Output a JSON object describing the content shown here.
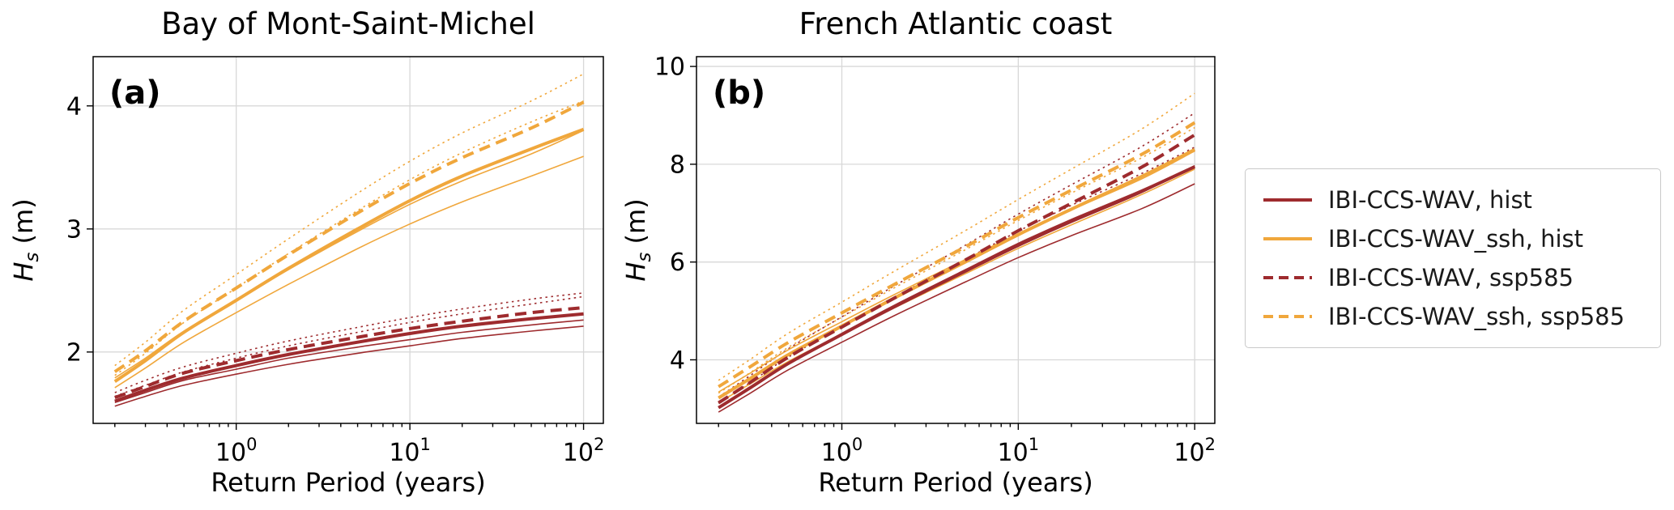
{
  "figure": {
    "background": "#ffffff",
    "grid_color": "#d8d8d8",
    "axis_color": "#000000",
    "text_color": "#000000",
    "colors": {
      "dark_red": "#9e2b2e",
      "orange": "#f0a73c"
    }
  },
  "legend": {
    "entries": [
      {
        "label": "IBI-CCS-WAV, hist",
        "color": "#9e2b2e",
        "style": "solid"
      },
      {
        "label": "IBI-CCS-WAV_ssh, hist",
        "color": "#f0a73c",
        "style": "solid"
      },
      {
        "label": "IBI-CCS-WAV, ssp585",
        "color": "#9e2b2e",
        "style": "dashed"
      },
      {
        "label": "IBI-CCS-WAV_ssh, ssp585",
        "color": "#f0a73c",
        "style": "dashed"
      }
    ]
  },
  "chart_data": [
    {
      "type": "line",
      "panel_label": "(a)",
      "title": "Bay of Mont-Saint-Michel",
      "xlabel": "Return Period (years)",
      "ylabel": "Hs (m)",
      "ylabel_parts": {
        "var": "H",
        "sub": "s",
        "unit": " (m)"
      },
      "xscale": "log",
      "xlim": [
        0.15,
        130
      ],
      "ylim": [
        1.42,
        4.4
      ],
      "xticks": [
        1,
        10,
        100
      ],
      "yticks": [
        2,
        3,
        4
      ],
      "x": [
        0.2,
        0.3,
        0.5,
        1,
        2,
        5,
        10,
        20,
        50,
        100
      ],
      "series": [
        {
          "name": "IBI-CCS-WAV, hist",
          "color": "#9e2b2e",
          "style": "solid",
          "values": [
            1.6,
            1.69,
            1.79,
            1.89,
            1.98,
            2.08,
            2.15,
            2.21,
            2.27,
            2.31
          ],
          "ci_lower": [
            1.56,
            1.64,
            1.73,
            1.82,
            1.9,
            1.99,
            2.05,
            2.11,
            2.17,
            2.21
          ],
          "ci_upper": [
            1.64,
            1.73,
            1.84,
            1.95,
            2.05,
            2.16,
            2.24,
            2.31,
            2.39,
            2.45
          ]
        },
        {
          "name": "IBI-CCS-WAV_ssh, hist",
          "color": "#f0a73c",
          "style": "solid",
          "values": [
            1.76,
            1.93,
            2.16,
            2.42,
            2.68,
            3.0,
            3.23,
            3.43,
            3.65,
            3.81
          ],
          "ci_lower": [
            1.71,
            1.87,
            2.08,
            2.32,
            2.55,
            2.84,
            3.04,
            3.22,
            3.43,
            3.59
          ],
          "ci_upper": [
            1.81,
            1.99,
            2.24,
            2.52,
            2.8,
            3.15,
            3.4,
            3.62,
            3.87,
            4.04
          ]
        },
        {
          "name": "IBI-CCS-WAV, ssp585",
          "color": "#9e2b2e",
          "style": "dashed",
          "values": [
            1.63,
            1.72,
            1.83,
            1.93,
            2.02,
            2.12,
            2.19,
            2.25,
            2.32,
            2.36
          ],
          "ci_lower": [
            1.59,
            1.67,
            1.77,
            1.86,
            1.95,
            2.04,
            2.1,
            2.16,
            2.22,
            2.26
          ],
          "ci_upper": [
            1.67,
            1.77,
            1.88,
            1.99,
            2.09,
            2.2,
            2.28,
            2.35,
            2.43,
            2.48
          ]
        },
        {
          "name": "IBI-CCS-WAV_ssh, ssp585",
          "color": "#f0a73c",
          "style": "dashed",
          "values": [
            1.84,
            2.01,
            2.25,
            2.52,
            2.79,
            3.13,
            3.37,
            3.58,
            3.82,
            4.03
          ],
          "ci_lower": [
            1.79,
            1.95,
            2.17,
            2.42,
            2.67,
            2.98,
            3.2,
            3.39,
            3.61,
            3.8
          ],
          "ci_upper": [
            1.89,
            2.08,
            2.34,
            2.63,
            2.92,
            3.29,
            3.55,
            3.78,
            4.04,
            4.26
          ]
        }
      ]
    },
    {
      "type": "line",
      "panel_label": "(b)",
      "title": "French Atlantic coast",
      "xlabel": "Return Period (years)",
      "ylabel": "Hs (m)",
      "ylabel_parts": {
        "var": "H",
        "sub": "s",
        "unit": " (m)"
      },
      "xscale": "log",
      "xlim": [
        0.15,
        130
      ],
      "ylim": [
        2.7,
        10.2
      ],
      "xticks": [
        1,
        10,
        100
      ],
      "yticks": [
        4,
        6,
        8,
        10
      ],
      "x": [
        0.2,
        0.3,
        0.5,
        1,
        2,
        5,
        10,
        20,
        50,
        100
      ],
      "series": [
        {
          "name": "IBI-CCS-WAV, hist",
          "color": "#9e2b2e",
          "style": "solid",
          "values": [
            3.02,
            3.42,
            3.93,
            4.52,
            5.1,
            5.82,
            6.36,
            6.85,
            7.45,
            7.95
          ],
          "ci_lower": [
            2.93,
            3.31,
            3.8,
            4.36,
            4.91,
            5.59,
            6.09,
            6.54,
            7.09,
            7.6
          ],
          "ci_upper": [
            3.11,
            3.53,
            4.06,
            4.68,
            5.29,
            6.05,
            6.63,
            7.16,
            7.81,
            8.35
          ]
        },
        {
          "name": "IBI-CCS-WAV_ssh, hist",
          "color": "#f0a73c",
          "style": "solid",
          "values": [
            3.22,
            3.61,
            4.11,
            4.69,
            5.27,
            6.0,
            6.56,
            7.08,
            7.75,
            8.3
          ],
          "ci_lower": [
            3.12,
            3.5,
            3.97,
            4.52,
            5.07,
            5.76,
            6.28,
            6.76,
            7.38,
            7.9
          ],
          "ci_upper": [
            3.32,
            3.73,
            4.26,
            4.87,
            5.48,
            6.25,
            6.85,
            7.41,
            8.13,
            8.75
          ]
        },
        {
          "name": "IBI-CCS-WAV, ssp585",
          "color": "#9e2b2e",
          "style": "dashed",
          "values": [
            3.12,
            3.53,
            4.06,
            4.67,
            5.27,
            6.04,
            6.64,
            7.2,
            7.94,
            8.6
          ],
          "ci_lower": [
            3.02,
            3.41,
            3.92,
            4.5,
            5.07,
            5.79,
            6.32,
            6.81,
            7.42,
            7.97
          ],
          "ci_upper": [
            3.24,
            3.67,
            4.23,
            4.88,
            5.52,
            6.34,
            6.98,
            7.58,
            8.36,
            9.05
          ]
        },
        {
          "name": "IBI-CCS-WAV_ssh, ssp585",
          "color": "#f0a73c",
          "style": "dashed",
          "values": [
            3.45,
            3.85,
            4.36,
            4.96,
            5.55,
            6.31,
            6.91,
            7.47,
            8.2,
            8.85
          ],
          "ci_lower": [
            3.34,
            3.72,
            4.21,
            4.78,
            5.34,
            6.05,
            6.58,
            7.07,
            7.7,
            8.27
          ],
          "ci_upper": [
            3.58,
            4.0,
            4.55,
            5.18,
            5.82,
            6.64,
            7.28,
            7.9,
            8.72,
            9.45
          ]
        }
      ]
    }
  ]
}
